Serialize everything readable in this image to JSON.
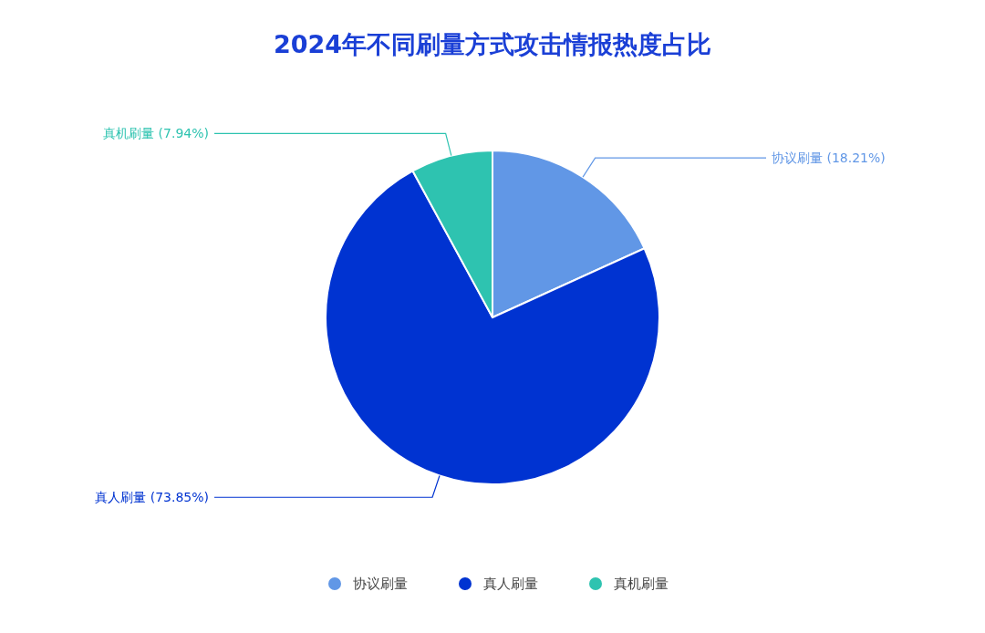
{
  "chart_data": {
    "type": "pie",
    "title": "2024年不同刷量方式攻击情报热度占比",
    "categories": [
      "协议刷量",
      "真人刷量",
      "真机刷量"
    ],
    "values": [
      18.21,
      73.85,
      7.94
    ],
    "colors": [
      "#6197e6",
      "#0033d1",
      "#2ec3b0"
    ],
    "value_labels": [
      "协议刷量 (18.21%)",
      "真人刷量 (73.85%)",
      "真机刷量 (7.94%)"
    ],
    "legend": "bottom"
  }
}
